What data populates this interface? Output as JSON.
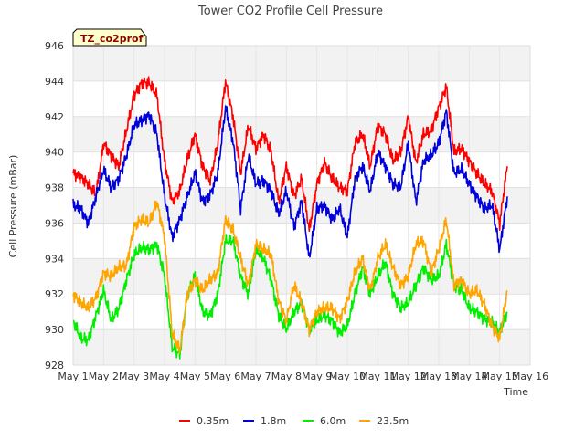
{
  "chart_data": {
    "type": "line",
    "title": "Tower CO2 Profile Cell Pressure",
    "xlabel": "Time",
    "ylabel": "Cell Pressure (mBar)",
    "badge": "TZ_co2prof",
    "xlim": [
      1,
      16
    ],
    "ylim": [
      928,
      946
    ],
    "x_ticks": [
      1,
      2,
      3,
      4,
      5,
      6,
      7,
      8,
      9,
      10,
      11,
      12,
      13,
      14,
      15,
      16
    ],
    "x_tick_labels": [
      "May 1",
      "May 2",
      "May 3",
      "May 4",
      "May 5",
      "May 6",
      "May 7",
      "May 8",
      "May 9",
      "May 10",
      "May 11",
      "May 12",
      "May 13",
      "May 14",
      "May 15",
      "May 16"
    ],
    "y_ticks": [
      928,
      930,
      932,
      934,
      936,
      938,
      940,
      942,
      944,
      946
    ],
    "y_tick_labels": [
      "928",
      "930",
      "932",
      "934",
      "936",
      "938",
      "940",
      "942",
      "944",
      "946"
    ],
    "grid": true,
    "legend_position": "bottom",
    "x": [
      1.0,
      1.25,
      1.5,
      1.75,
      2.0,
      2.25,
      2.5,
      2.75,
      3.0,
      3.25,
      3.5,
      3.75,
      4.0,
      4.25,
      4.5,
      4.75,
      5.0,
      5.25,
      5.5,
      5.75,
      6.0,
      6.25,
      6.5,
      6.75,
      7.0,
      7.25,
      7.5,
      7.75,
      8.0,
      8.25,
      8.5,
      8.75,
      9.0,
      9.25,
      9.5,
      9.75,
      10.0,
      10.25,
      10.5,
      10.75,
      11.0,
      11.25,
      11.5,
      11.75,
      12.0,
      12.25,
      12.5,
      12.75,
      13.0,
      13.25,
      13.5,
      13.75,
      14.0,
      14.25,
      14.5,
      14.75,
      15.0,
      15.25
    ],
    "series": [
      {
        "name": "0.35m",
        "color": "#ff0000",
        "values": [
          938.8,
          938.6,
          938.2,
          937.6,
          940.5,
          939.8,
          939.2,
          941.2,
          943.2,
          943.9,
          943.9,
          943.2,
          939.5,
          937.2,
          937.8,
          939.6,
          941.0,
          939.2,
          938.4,
          940.5,
          944.0,
          942.0,
          938.8,
          941.5,
          940.2,
          941.0,
          940.0,
          937.2,
          939.2,
          937.5,
          938.5,
          935.6,
          938.2,
          939.4,
          938.5,
          938.0,
          937.8,
          940.5,
          941.0,
          939.2,
          941.5,
          941.0,
          939.5,
          940.0,
          942.0,
          939.4,
          941.0,
          941.2,
          942.5,
          943.7,
          940.0,
          940.2,
          939.5,
          938.8,
          938.2,
          937.8,
          936.0,
          939.2
        ]
      },
      {
        "name": "1.8m",
        "color": "#0000dd",
        "values": [
          937.0,
          936.8,
          936.0,
          937.5,
          939.0,
          938.0,
          938.5,
          939.8,
          941.5,
          941.8,
          942.1,
          941.0,
          937.5,
          935.2,
          936.2,
          937.5,
          938.8,
          937.2,
          937.6,
          938.8,
          942.5,
          940.6,
          936.8,
          939.8,
          938.2,
          938.4,
          937.8,
          936.5,
          937.8,
          935.8,
          937.2,
          934.0,
          936.8,
          937.0,
          936.2,
          936.8,
          935.2,
          938.5,
          939.2,
          937.8,
          940.0,
          939.2,
          938.2,
          938.0,
          940.5,
          937.2,
          939.5,
          939.8,
          940.5,
          942.3,
          938.8,
          939.0,
          938.2,
          937.5,
          936.8,
          937.0,
          934.5,
          937.5
        ]
      },
      {
        "name": "6.0m",
        "color": "#00ee00",
        "values": [
          930.5,
          929.5,
          929.4,
          930.8,
          932.2,
          930.5,
          931.2,
          932.8,
          934.2,
          934.6,
          934.5,
          934.8,
          933.0,
          929.0,
          928.6,
          932.0,
          933.0,
          931.0,
          930.8,
          932.0,
          935.0,
          935.0,
          933.0,
          932.0,
          934.5,
          934.0,
          932.8,
          930.8,
          930.0,
          931.0,
          931.5,
          930.0,
          930.5,
          930.8,
          930.5,
          929.8,
          930.2,
          932.0,
          933.5,
          932.0,
          933.0,
          933.8,
          932.0,
          931.2,
          931.5,
          932.5,
          933.5,
          932.8,
          933.0,
          934.8,
          932.5,
          932.2,
          931.2,
          931.0,
          930.6,
          930.4,
          929.8,
          931.0
        ]
      },
      {
        "name": "23.5m",
        "color": "#ffa500",
        "values": [
          932.0,
          931.5,
          931.2,
          931.8,
          933.2,
          933.0,
          933.5,
          933.6,
          935.8,
          936.2,
          936.0,
          937.2,
          935.2,
          929.8,
          928.8,
          932.0,
          932.8,
          932.2,
          932.8,
          933.2,
          936.2,
          935.6,
          934.0,
          932.5,
          934.8,
          934.5,
          934.2,
          931.6,
          930.5,
          932.5,
          931.5,
          930.0,
          931.0,
          931.2,
          931.2,
          930.6,
          931.6,
          933.2,
          934.0,
          932.2,
          934.0,
          934.8,
          933.5,
          932.5,
          933.0,
          934.8,
          935.0,
          933.2,
          934.5,
          936.2,
          932.5,
          932.8,
          932.0,
          932.2,
          931.4,
          930.2,
          929.5,
          932.2
        ]
      }
    ]
  }
}
